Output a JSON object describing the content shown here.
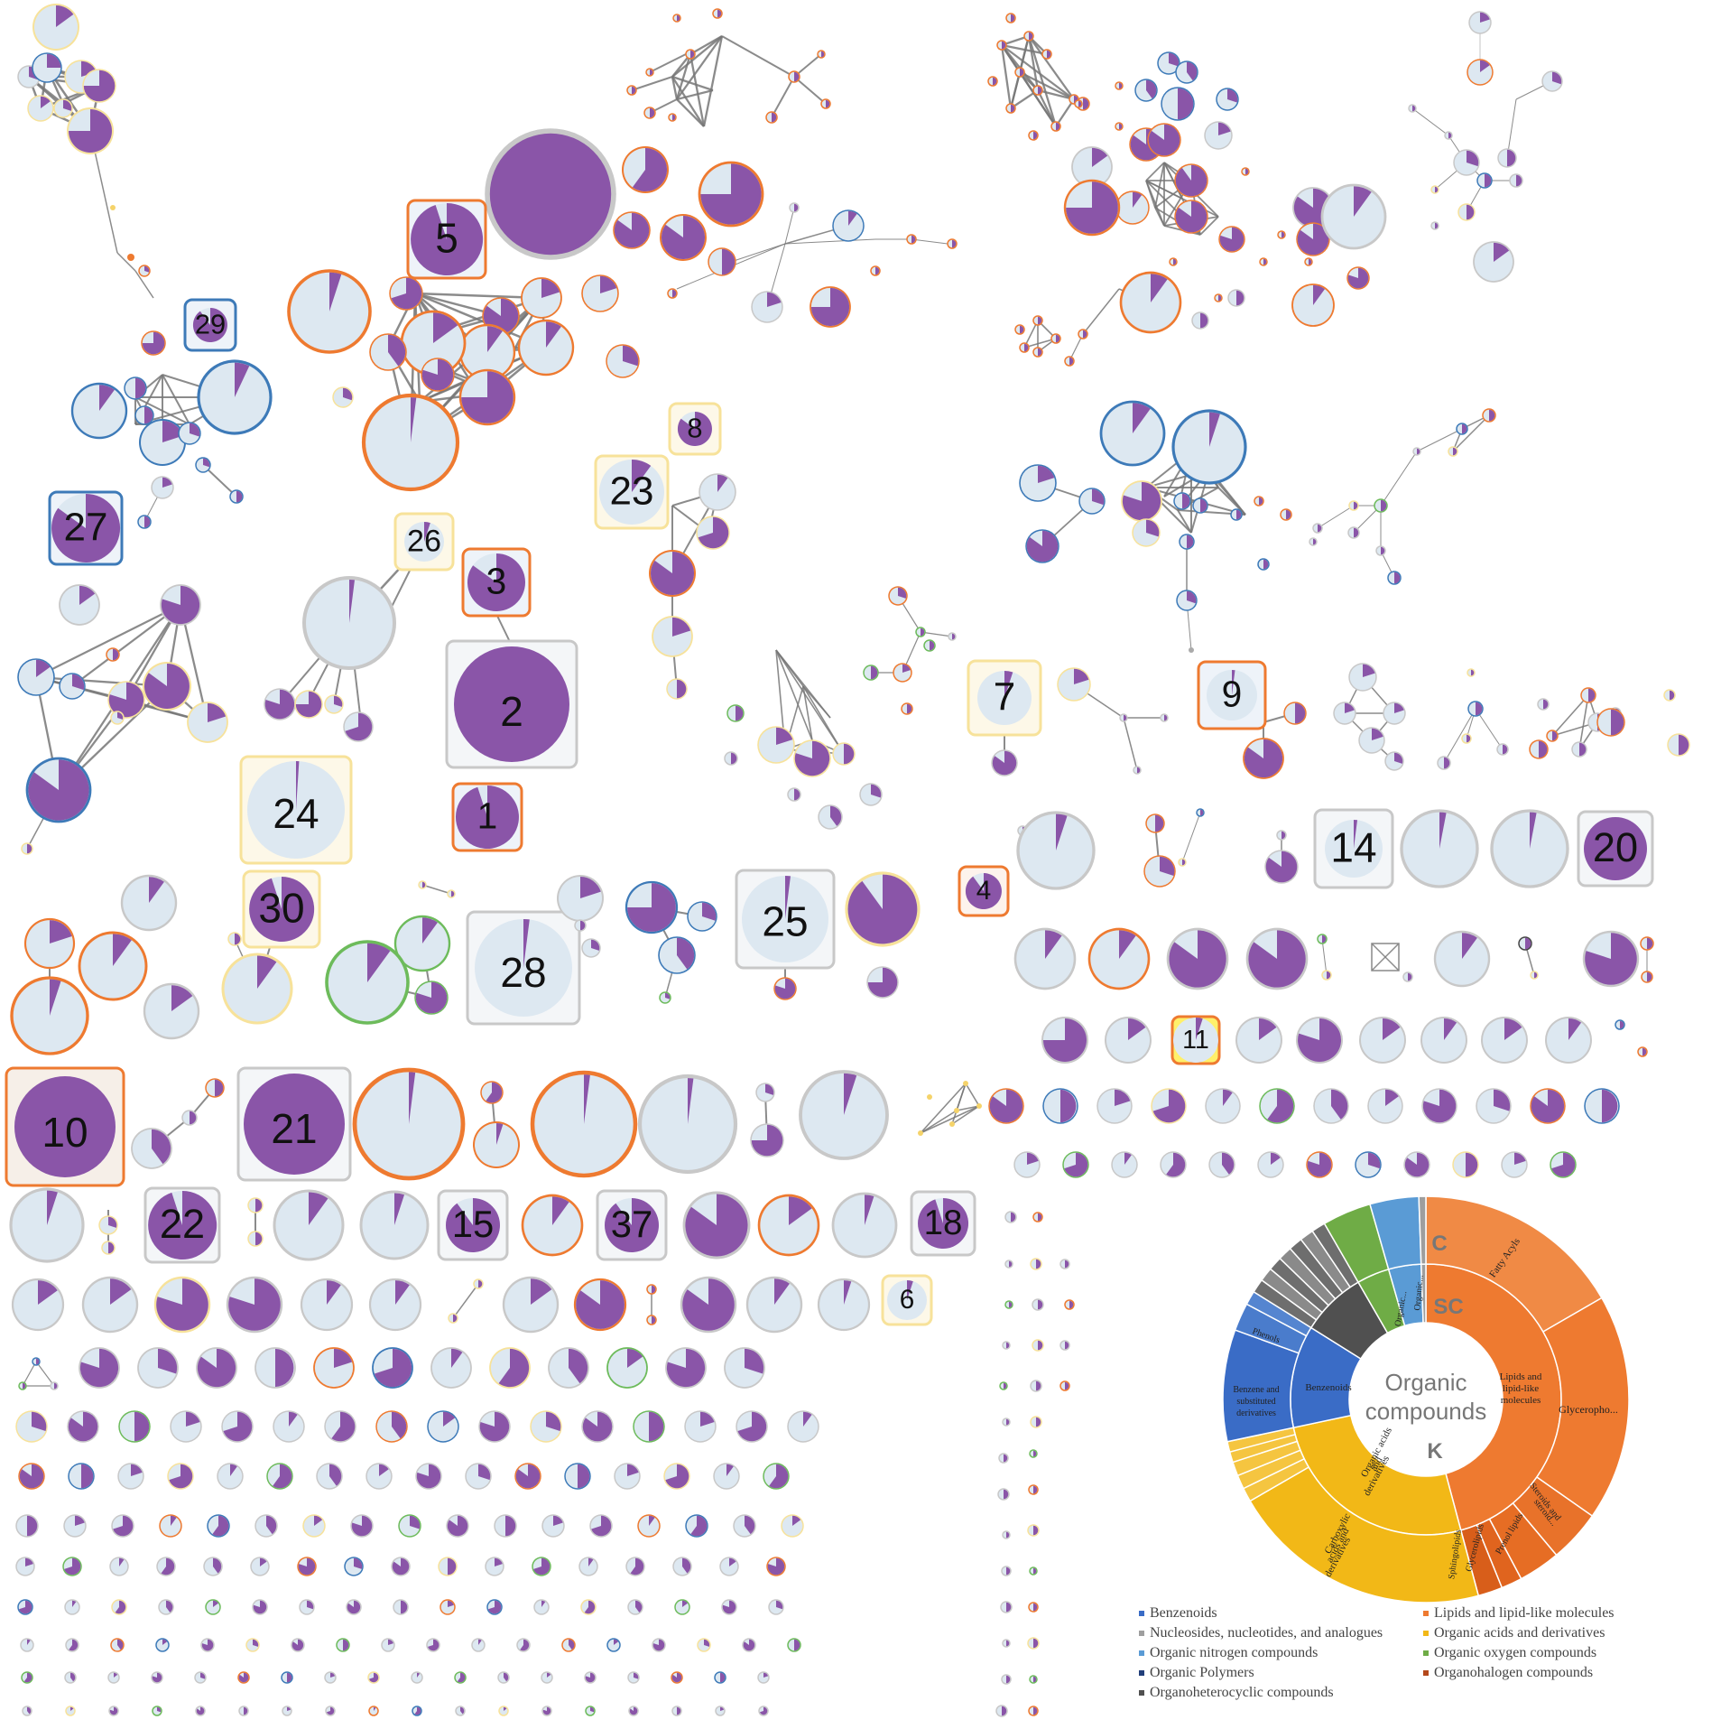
{
  "colors": {
    "purple": "#8a55a8",
    "node_fill": "#dde8f1",
    "grey_ring": "#c8c8c8",
    "orange": "#ee7a30",
    "blue": "#3d7ab8",
    "yellow": "#f7e29a",
    "green": "#6dbb5b",
    "edge": "#777777"
  },
  "network": {
    "labeled_nodes": [
      "1",
      "2",
      "3",
      "4",
      "5",
      "6",
      "7",
      "8",
      "9",
      "10",
      "11",
      "14",
      "15",
      "18",
      "20",
      "21",
      "22",
      "23",
      "24",
      "25",
      "26",
      "27",
      "28",
      "29",
      "30",
      "37"
    ]
  },
  "sunburst": {
    "center_label": [
      "Organic",
      "compounds"
    ],
    "level_letters": {
      "kingdom": "K",
      "superclass": "SC",
      "class": "C"
    },
    "superclass_labels": {
      "lipids": [
        "Lipids and",
        "lipid-like",
        "molecules"
      ],
      "organic_acids": [
        "Organic acids",
        "and",
        "derivatives"
      ],
      "benzenoids": "Benzenoids",
      "organic_oxygen": "Organic...",
      "organic_nitrogen": "Organic..."
    },
    "class_labels": {
      "fatty_acyls": "Fatty Acyls",
      "glycerophospholipids": "Glycerophо...",
      "steroids": [
        "Steroids and",
        "steroid..."
      ],
      "prenol": "Prenol lipids",
      "glycerolipids": "Glycerolipids",
      "sphingolipids": "Sphingolipids",
      "carboxylic": [
        "Carboxylic",
        "acids and",
        "derivatives"
      ],
      "benzene": [
        "Benzene and",
        "substituted",
        "derivatives"
      ],
      "phenols": "Phenols"
    }
  },
  "legend": [
    {
      "label": "Benzenoids",
      "color": "#3a6cc6"
    },
    {
      "label": "Lipids and lipid-like molecules",
      "color": "#ee7a30"
    },
    {
      "label": "Nucleosides, nucleotides, and analogues",
      "color": "#9e9e9e"
    },
    {
      "label": "Organic acids and derivatives",
      "color": "#f2b817"
    },
    {
      "label": "Organic nitrogen compounds",
      "color": "#5a9bd5"
    },
    {
      "label": "Organic oxygen compounds",
      "color": "#6fac46"
    },
    {
      "label": "Organic Polymers",
      "color": "#223f7a"
    },
    {
      "label": "Organohalogen compounds",
      "color": "#b4481b"
    },
    {
      "label": "Organoheterocyclic compounds",
      "color": "#505050"
    }
  ]
}
